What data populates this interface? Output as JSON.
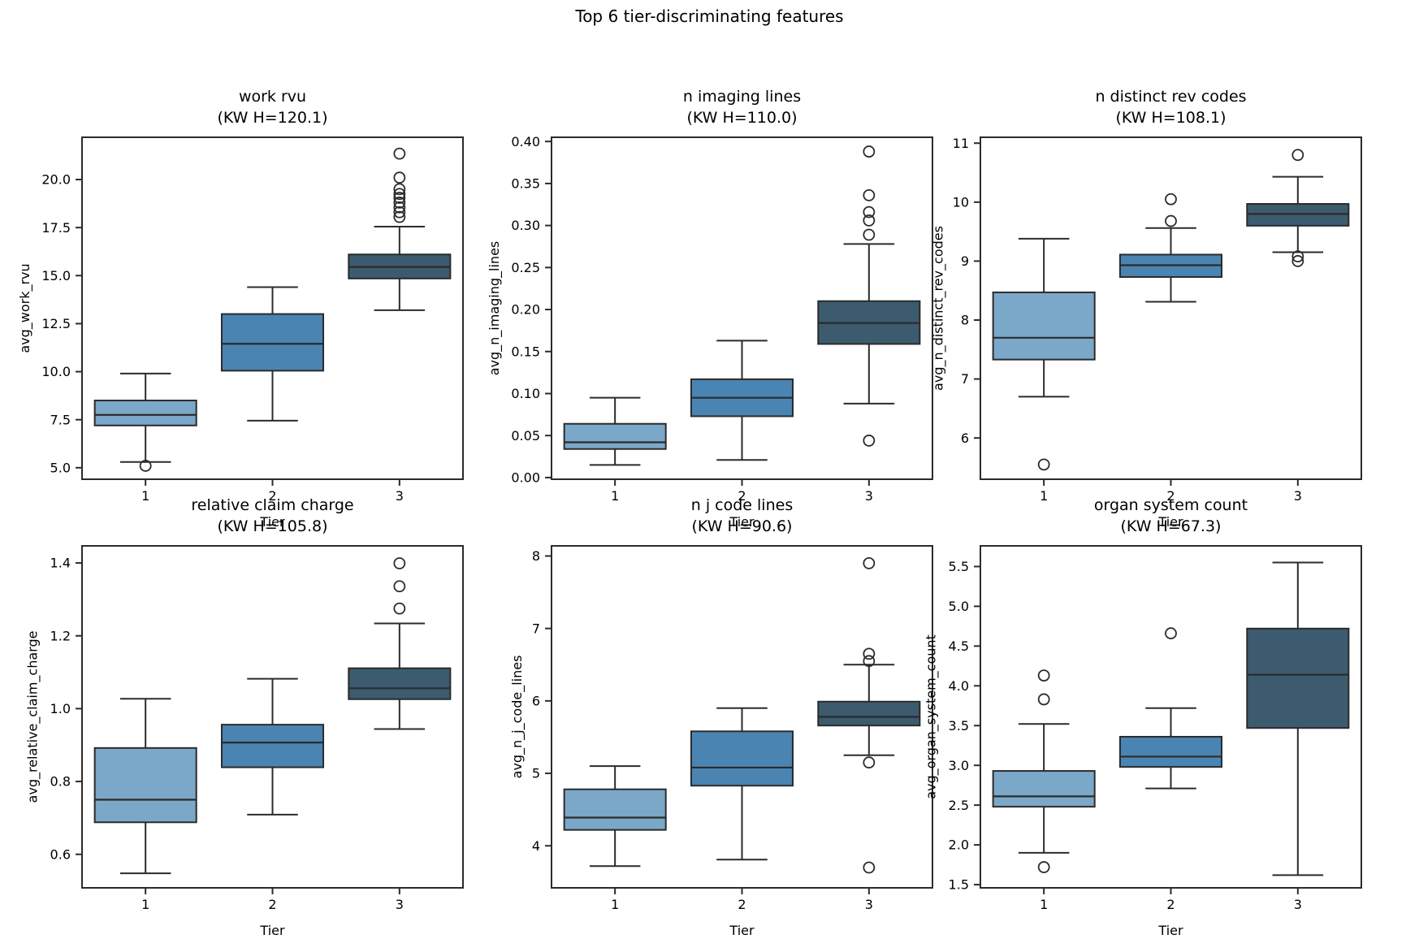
{
  "figure": {
    "title": "Top 6 tier-discriminating features",
    "background": "#ffffff"
  },
  "style": {
    "tier_colors": [
      "#7BA8C8",
      "#4A84B2",
      "#3C5B6F"
    ],
    "edge_color": "#2B2B2B",
    "tier_labels": [
      "1",
      "2",
      "3"
    ]
  },
  "chart_data": [
    {
      "type": "box",
      "title": "work rvu",
      "subtitle": "(KW H=120.1)",
      "ylabel": "avg_work_rvu",
      "xlabel": "Tier",
      "categories": [
        "1",
        "2",
        "3"
      ],
      "ylim": [
        4.4,
        22.2
      ],
      "yticks": [
        {
          "v": 5.0,
          "label": "5.0"
        },
        {
          "v": 7.5,
          "label": "7.5"
        },
        {
          "v": 10.0,
          "label": "10.0"
        },
        {
          "v": 12.5,
          "label": "12.5"
        },
        {
          "v": 15.0,
          "label": "15.0"
        },
        {
          "v": 17.5,
          "label": "17.5"
        },
        {
          "v": 20.0,
          "label": "20.0"
        }
      ],
      "series": [
        {
          "name": "Tier 1",
          "whislo": 5.3,
          "q1": 7.2,
          "med": 7.75,
          "q3": 8.5,
          "whishi": 9.9,
          "fliers": [
            5.1
          ]
        },
        {
          "name": "Tier 2",
          "whislo": 7.45,
          "q1": 10.05,
          "med": 11.45,
          "q3": 13.0,
          "whishi": 14.4,
          "fliers": []
        },
        {
          "name": "Tier 3",
          "whislo": 13.2,
          "q1": 14.85,
          "med": 15.45,
          "q3": 16.1,
          "whishi": 17.55,
          "fliers": [
            18.05,
            18.3,
            18.55,
            18.8,
            19.05,
            19.25,
            19.5,
            20.1,
            21.35
          ]
        }
      ]
    },
    {
      "type": "box",
      "title": "n imaging lines",
      "subtitle": "(KW H=110.0)",
      "ylabel": "avg_n_imaging_lines",
      "xlabel": "Tier",
      "categories": [
        "1",
        "2",
        "3"
      ],
      "ylim": [
        -0.002,
        0.405
      ],
      "yticks": [
        {
          "v": 0.0,
          "label": "0.00"
        },
        {
          "v": 0.05,
          "label": "0.05"
        },
        {
          "v": 0.1,
          "label": "0.10"
        },
        {
          "v": 0.15,
          "label": "0.15"
        },
        {
          "v": 0.2,
          "label": "0.20"
        },
        {
          "v": 0.25,
          "label": "0.25"
        },
        {
          "v": 0.3,
          "label": "0.30"
        },
        {
          "v": 0.35,
          "label": "0.35"
        },
        {
          "v": 0.4,
          "label": "0.40"
        }
      ],
      "series": [
        {
          "name": "Tier 1",
          "whislo": 0.015,
          "q1": 0.034,
          "med": 0.042,
          "q3": 0.064,
          "whishi": 0.095,
          "fliers": []
        },
        {
          "name": "Tier 2",
          "whislo": 0.021,
          "q1": 0.073,
          "med": 0.095,
          "q3": 0.117,
          "whishi": 0.163,
          "fliers": []
        },
        {
          "name": "Tier 3",
          "whislo": 0.088,
          "q1": 0.159,
          "med": 0.184,
          "q3": 0.21,
          "whishi": 0.278,
          "fliers": [
            0.044,
            0.289,
            0.306,
            0.316,
            0.336,
            0.388
          ]
        }
      ]
    },
    {
      "type": "box",
      "title": "n distinct rev codes",
      "subtitle": "(KW H=108.1)",
      "ylabel": "avg_n_distinct_rev_codes",
      "xlabel": "Tier",
      "categories": [
        "1",
        "2",
        "3"
      ],
      "ylim": [
        5.3,
        11.1
      ],
      "yticks": [
        {
          "v": 6,
          "label": "6"
        },
        {
          "v": 7,
          "label": "7"
        },
        {
          "v": 8,
          "label": "8"
        },
        {
          "v": 9,
          "label": "9"
        },
        {
          "v": 10,
          "label": "10"
        },
        {
          "v": 11,
          "label": "11"
        }
      ],
      "series": [
        {
          "name": "Tier 1",
          "whislo": 6.7,
          "q1": 7.33,
          "med": 7.7,
          "q3": 8.47,
          "whishi": 9.38,
          "fliers": [
            5.55
          ]
        },
        {
          "name": "Tier 2",
          "whislo": 8.31,
          "q1": 8.73,
          "med": 8.93,
          "q3": 9.11,
          "whishi": 9.56,
          "fliers": [
            9.68,
            10.05
          ]
        },
        {
          "name": "Tier 3",
          "whislo": 9.15,
          "q1": 9.6,
          "med": 9.8,
          "q3": 9.97,
          "whishi": 10.43,
          "fliers": [
            9.0,
            9.08,
            10.8
          ]
        }
      ]
    },
    {
      "type": "box",
      "title": "relative claim charge",
      "subtitle": "(KW H=105.8)",
      "ylabel": "avg_relative_claim_charge",
      "xlabel": "Tier",
      "categories": [
        "1",
        "2",
        "3"
      ],
      "ylim": [
        0.508,
        1.447
      ],
      "yticks": [
        {
          "v": 0.6,
          "label": "0.6"
        },
        {
          "v": 0.8,
          "label": "0.8"
        },
        {
          "v": 1.0,
          "label": "1.0"
        },
        {
          "v": 1.2,
          "label": "1.2"
        },
        {
          "v": 1.4,
          "label": "1.4"
        }
      ],
      "series": [
        {
          "name": "Tier 1",
          "whislo": 0.548,
          "q1": 0.688,
          "med": 0.75,
          "q3": 0.892,
          "whishi": 1.027,
          "fliers": []
        },
        {
          "name": "Tier 2",
          "whislo": 0.709,
          "q1": 0.839,
          "med": 0.907,
          "q3": 0.956,
          "whishi": 1.082,
          "fliers": []
        },
        {
          "name": "Tier 3",
          "whislo": 0.944,
          "q1": 1.026,
          "med": 1.056,
          "q3": 1.111,
          "whishi": 1.234,
          "fliers": [
            1.275,
            1.336,
            1.399
          ]
        }
      ]
    },
    {
      "type": "box",
      "title": "n j code lines",
      "subtitle": "(KW H=90.6)",
      "ylabel": "avg_n_j_code_lines",
      "xlabel": "Tier",
      "categories": [
        "1",
        "2",
        "3"
      ],
      "ylim": [
        3.42,
        8.14
      ],
      "yticks": [
        {
          "v": 4,
          "label": "4"
        },
        {
          "v": 5,
          "label": "5"
        },
        {
          "v": 6,
          "label": "6"
        },
        {
          "v": 7,
          "label": "7"
        },
        {
          "v": 8,
          "label": "8"
        }
      ],
      "series": [
        {
          "name": "Tier 1",
          "whislo": 3.72,
          "q1": 4.22,
          "med": 4.39,
          "q3": 4.78,
          "whishi": 5.1,
          "fliers": []
        },
        {
          "name": "Tier 2",
          "whislo": 3.81,
          "q1": 4.83,
          "med": 5.08,
          "q3": 5.58,
          "whishi": 5.9,
          "fliers": []
        },
        {
          "name": "Tier 3",
          "whislo": 5.25,
          "q1": 5.66,
          "med": 5.78,
          "q3": 5.99,
          "whishi": 6.5,
          "fliers": [
            3.7,
            5.15,
            6.55,
            6.65,
            7.9
          ]
        }
      ]
    },
    {
      "type": "box",
      "title": "organ system count",
      "subtitle": "(KW H=67.3)",
      "ylabel": "avg_organ_system_count",
      "xlabel": "Tier",
      "categories": [
        "1",
        "2",
        "3"
      ],
      "ylim": [
        1.46,
        5.76
      ],
      "yticks": [
        {
          "v": 1.5,
          "label": "1.5"
        },
        {
          "v": 2.0,
          "label": "2.0"
        },
        {
          "v": 2.5,
          "label": "2.5"
        },
        {
          "v": 3.0,
          "label": "3.0"
        },
        {
          "v": 3.5,
          "label": "3.5"
        },
        {
          "v": 4.0,
          "label": "4.0"
        },
        {
          "v": 4.5,
          "label": "4.5"
        },
        {
          "v": 5.0,
          "label": "5.0"
        },
        {
          "v": 5.5,
          "label": "5.5"
        }
      ],
      "series": [
        {
          "name": "Tier 1",
          "whislo": 1.9,
          "q1": 2.48,
          "med": 2.61,
          "q3": 2.93,
          "whishi": 3.52,
          "fliers": [
            1.72,
            3.83,
            4.13
          ]
        },
        {
          "name": "Tier 2",
          "whislo": 2.71,
          "q1": 2.98,
          "med": 3.11,
          "q3": 3.36,
          "whishi": 3.72,
          "fliers": [
            4.66
          ]
        },
        {
          "name": "Tier 3",
          "whislo": 1.62,
          "q1": 3.47,
          "med": 4.14,
          "q3": 4.72,
          "whishi": 5.55,
          "fliers": []
        }
      ]
    }
  ]
}
